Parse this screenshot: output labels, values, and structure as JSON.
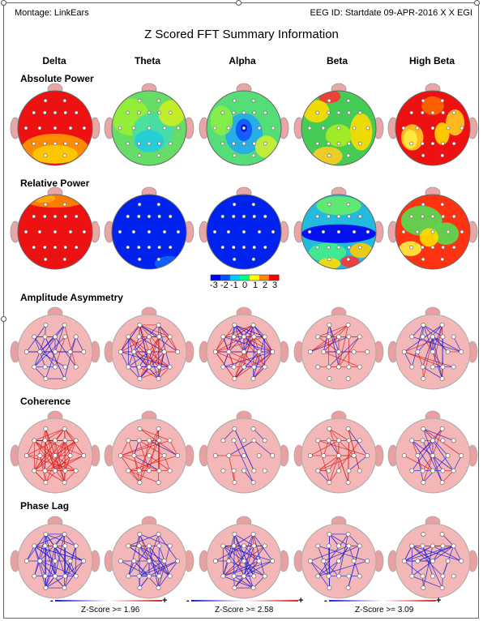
{
  "header": {
    "montage": "Montage:  LinkEars",
    "eeg_id": "EEG ID:  Startdate 09-APR-2016 X X EGI",
    "title": "Z Scored FFT Summary Information"
  },
  "columns": [
    "Delta",
    "Theta",
    "Alpha",
    "Beta",
    "High Beta"
  ],
  "rows": {
    "absolute_power": "Absolute Power",
    "relative_power": "Relative Power",
    "amplitude_asymmetry": "Amplitude Asymmetry",
    "coherence": "Coherence",
    "phase_lag": "Phase Lag"
  },
  "colorbar": {
    "ticks": [
      "-3",
      "-2",
      "-1",
      "0",
      "1",
      "2",
      "3"
    ],
    "colors": [
      "#0000ff",
      "#0055ff",
      "#00ccff",
      "#00ff88",
      "#ffff00",
      "#ff8800",
      "#ff0000"
    ]
  },
  "legend": {
    "items": [
      {
        "label": "Z-Score >= 1.96",
        "minus": "-",
        "plus": "+"
      },
      {
        "label": "Z-Score >= 2.58",
        "minus": "-",
        "plus": "+"
      },
      {
        "label": "Z-Score >= 3.09",
        "minus": "-",
        "plus": "+"
      }
    ]
  },
  "map_colors": {
    "absolute_power": [
      {
        "base": "#ee1111",
        "blobs": [
          [
            "#ff9900",
            0.0,
            0.55,
            0.9,
            0.4
          ],
          [
            "#ffcc00",
            0.0,
            0.7,
            0.6,
            0.25
          ]
        ]
      },
      {
        "base": "#66dd66",
        "blobs": [
          [
            "#99ee33",
            -0.5,
            -0.3,
            0.5,
            0.5
          ],
          [
            "#44ddaa",
            0.1,
            0.1,
            0.55,
            0.5
          ],
          [
            "#22ccdd",
            0.0,
            0.35,
            0.4,
            0.3
          ],
          [
            "#ccee22",
            0.6,
            -0.4,
            0.35,
            0.35
          ]
        ]
      },
      {
        "base": "#55dd77",
        "blobs": [
          [
            "#22aaee",
            0.0,
            0.15,
            0.5,
            0.55
          ],
          [
            "#1155ff",
            0.0,
            0.05,
            0.22,
            0.3
          ],
          [
            "#0000cc",
            0.0,
            0.0,
            0.08,
            0.1
          ],
          [
            "#88ee44",
            -0.6,
            -0.2,
            0.3,
            0.4
          ],
          [
            "#ccee33",
            0.6,
            0.5,
            0.3,
            0.3
          ]
        ]
      },
      {
        "base": "#44cc55",
        "blobs": [
          [
            "#ff3333",
            -0.25,
            -0.85,
            0.3,
            0.18
          ],
          [
            "#ffdd00",
            -0.6,
            -0.45,
            0.35,
            0.3
          ],
          [
            "#ffdd00",
            0.6,
            0.1,
            0.3,
            0.5
          ],
          [
            "#ffcc22",
            -0.3,
            0.75,
            0.4,
            0.25
          ],
          [
            "#aaee22",
            0.0,
            0.2,
            0.35,
            0.3
          ]
        ]
      },
      {
        "base": "#ee1111",
        "blobs": [
          [
            "#ffcc22",
            -0.55,
            0.25,
            0.3,
            0.35
          ],
          [
            "#ffee44",
            -0.6,
            0.3,
            0.18,
            0.25
          ],
          [
            "#ffcc22",
            0.6,
            -0.15,
            0.25,
            0.35
          ],
          [
            "#ffdd00",
            0.25,
            0.15,
            0.2,
            0.3
          ],
          [
            "#ff6600",
            0.0,
            -0.6,
            0.3,
            0.25
          ]
        ]
      }
    ],
    "relative_power": [
      {
        "base": "#ee1111",
        "blobs": [
          [
            "#ff8800",
            0.0,
            -0.85,
            0.8,
            0.2
          ],
          [
            "#ffaa00",
            -0.3,
            -0.9,
            0.3,
            0.12
          ]
        ]
      },
      {
        "base": "#0022ee",
        "blobs": [
          [
            "#1166ff",
            0.55,
            0.85,
            0.4,
            0.2
          ]
        ]
      },
      {
        "base": "#0022ee",
        "blobs": []
      },
      {
        "base": "#22bbdd",
        "blobs": [
          [
            "#0000ee",
            0.0,
            0.05,
            1.0,
            0.25
          ],
          [
            "#44ee88",
            -0.3,
            0.55,
            0.5,
            0.25
          ],
          [
            "#ffdd00",
            -0.25,
            0.85,
            0.3,
            0.15
          ],
          [
            "#ff3333",
            0.3,
            0.8,
            0.25,
            0.15
          ],
          [
            "#ffcc00",
            0.6,
            0.5,
            0.3,
            0.2
          ],
          [
            "#66ee66",
            0.0,
            -0.7,
            0.6,
            0.25
          ]
        ]
      },
      {
        "base": "#ff3311",
        "blobs": [
          [
            "#55dd55",
            -0.3,
            -0.3,
            0.55,
            0.4
          ],
          [
            "#55dd55",
            0.35,
            0.05,
            0.35,
            0.3
          ],
          [
            "#ffdd00",
            -0.1,
            0.15,
            0.25,
            0.25
          ],
          [
            "#ffee44",
            -0.6,
            0.45,
            0.3,
            0.2
          ]
        ]
      }
    ]
  },
  "network_colors": {
    "positive": "#e02020",
    "negative": "#2020d8",
    "head": "#f3b7b7",
    "nose_ear": "#e9a0a0"
  }
}
